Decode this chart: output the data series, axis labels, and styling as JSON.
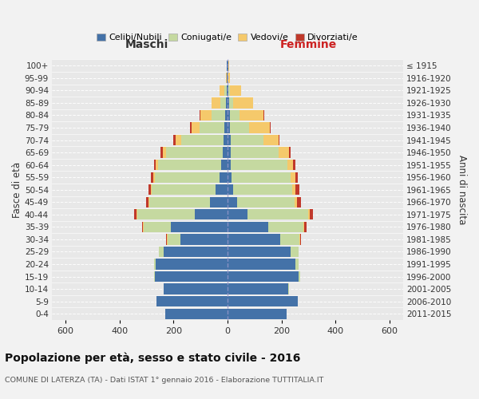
{
  "age_groups": [
    "0-4",
    "5-9",
    "10-14",
    "15-19",
    "20-24",
    "25-29",
    "30-34",
    "35-39",
    "40-44",
    "45-49",
    "50-54",
    "55-59",
    "60-64",
    "65-69",
    "70-74",
    "75-79",
    "80-84",
    "85-89",
    "90-94",
    "95-99",
    "100+"
  ],
  "birth_years": [
    "2011-2015",
    "2006-2010",
    "2001-2005",
    "1996-2000",
    "1991-1995",
    "1986-1990",
    "1981-1985",
    "1976-1980",
    "1971-1975",
    "1966-1970",
    "1961-1965",
    "1956-1960",
    "1951-1955",
    "1946-1950",
    "1941-1945",
    "1936-1940",
    "1931-1935",
    "1926-1930",
    "1921-1925",
    "1916-1920",
    "≤ 1915"
  ],
  "colors": {
    "celibi": "#4472A8",
    "coniugati": "#C5D9A0",
    "vedovi": "#F5C96B",
    "divorziati": "#C0392B"
  },
  "males": {
    "celibi": [
      230,
      262,
      235,
      270,
      265,
      235,
      175,
      210,
      120,
      65,
      45,
      28,
      22,
      18,
      15,
      12,
      8,
      5,
      3,
      2,
      2
    ],
    "coniugati": [
      0,
      0,
      0,
      3,
      8,
      18,
      48,
      100,
      215,
      225,
      235,
      240,
      235,
      210,
      155,
      90,
      50,
      22,
      8,
      0,
      0
    ],
    "vedovi": [
      0,
      0,
      0,
      0,
      0,
      0,
      2,
      2,
      2,
      2,
      4,
      6,
      8,
      12,
      22,
      32,
      42,
      32,
      18,
      5,
      2
    ],
    "divorziati": [
      0,
      0,
      0,
      0,
      0,
      0,
      2,
      4,
      8,
      10,
      8,
      10,
      8,
      8,
      10,
      4,
      2,
      0,
      0,
      0,
      0
    ]
  },
  "females": {
    "nubili": [
      218,
      260,
      225,
      265,
      252,
      235,
      195,
      150,
      75,
      35,
      22,
      15,
      12,
      12,
      12,
      10,
      8,
      6,
      4,
      1,
      2
    ],
    "coniugate": [
      0,
      0,
      2,
      4,
      12,
      28,
      72,
      130,
      225,
      215,
      218,
      218,
      210,
      178,
      120,
      70,
      38,
      15,
      4,
      0,
      0
    ],
    "vedove": [
      0,
      0,
      0,
      0,
      0,
      0,
      2,
      4,
      4,
      8,
      12,
      18,
      22,
      38,
      58,
      78,
      88,
      75,
      42,
      8,
      3
    ],
    "divorziate": [
      0,
      0,
      0,
      0,
      0,
      0,
      3,
      8,
      12,
      15,
      14,
      10,
      8,
      5,
      4,
      3,
      2,
      0,
      0,
      0,
      0
    ]
  },
  "title": "Popolazione per età, sesso e stato civile - 2016",
  "subtitle": "COMUNE DI LATERZA (TA) - Dati ISTAT 1° gennaio 2016 - Elaborazione TUTTITALIA.IT",
  "xlabel_left": "Maschi",
  "xlabel_right": "Femmine",
  "ylabel_left": "Fasce di età",
  "ylabel_right": "Anni di nascita",
  "legend_labels": [
    "Celibi/Nubili",
    "Coniugati/e",
    "Vedovi/e",
    "Divorziati/e"
  ],
  "xlim": 650,
  "xticks": [
    -600,
    -400,
    -200,
    0,
    200,
    400,
    600
  ],
  "fig_bg": "#f2f2f2",
  "ax_bg": "#e8e8e8"
}
